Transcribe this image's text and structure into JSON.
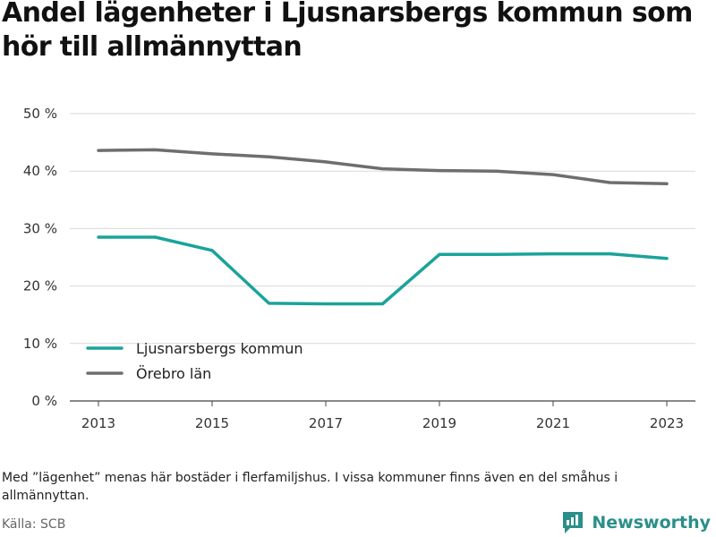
{
  "title": "Andel lägenheter i Ljusnarsbergs kommun som hör till allmännyttan",
  "note": "Med ”lägenhet” menas här bostäder i flerfamiljshus. I vissa kommuner finns även en del småhus i allmännyttan.",
  "source": "Källa: SCB",
  "brand": {
    "name": "Newsworthy",
    "icon": "newsworthy-logo-icon",
    "color": "#2a8f8a"
  },
  "chart_data": {
    "type": "line",
    "title": "Andel lägenheter i Ljusnarsbergs kommun som hör till allmännyttan",
    "xlabel": "",
    "ylabel": "",
    "x": [
      2013,
      2014,
      2015,
      2016,
      2017,
      2018,
      2019,
      2020,
      2021,
      2022,
      2023
    ],
    "x_ticks": [
      "2013",
      "2015",
      "2017",
      "2019",
      "2021",
      "2023"
    ],
    "y_ticks": [
      "0 %",
      "10 %",
      "20 %",
      "30 %",
      "40 %",
      "50 %"
    ],
    "ylim": [
      0,
      50
    ],
    "grid": "horizontal",
    "legend_position": "bottom-left",
    "series": [
      {
        "name": "Ljusnarsbergs kommun",
        "color": "#1aa39b",
        "values": [
          28.5,
          28.5,
          26.2,
          17.0,
          16.9,
          16.9,
          25.5,
          25.5,
          25.6,
          25.6,
          24.8
        ]
      },
      {
        "name": "Örebro län",
        "color": "#6e6e6e",
        "values": [
          43.6,
          43.7,
          43.0,
          42.5,
          41.6,
          40.4,
          40.1,
          40.0,
          39.4,
          38.0,
          37.8
        ]
      }
    ]
  }
}
